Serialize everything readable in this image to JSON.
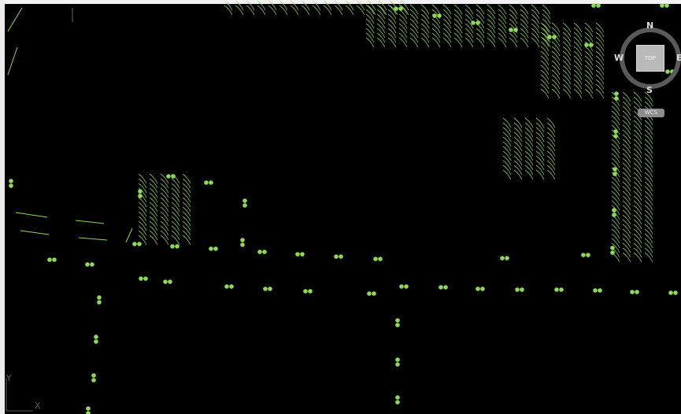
{
  "viewport": {
    "background": "#000000",
    "plant_color": "#8fd85c",
    "hatch_color": "#9be36a"
  },
  "viewcube": {
    "face_label": "TOP",
    "north": "N",
    "south": "S",
    "west": "W",
    "east": "E",
    "menu_label": "WCS"
  },
  "ucs_icon": {
    "y_label": "Y",
    "x_label": "X"
  }
}
